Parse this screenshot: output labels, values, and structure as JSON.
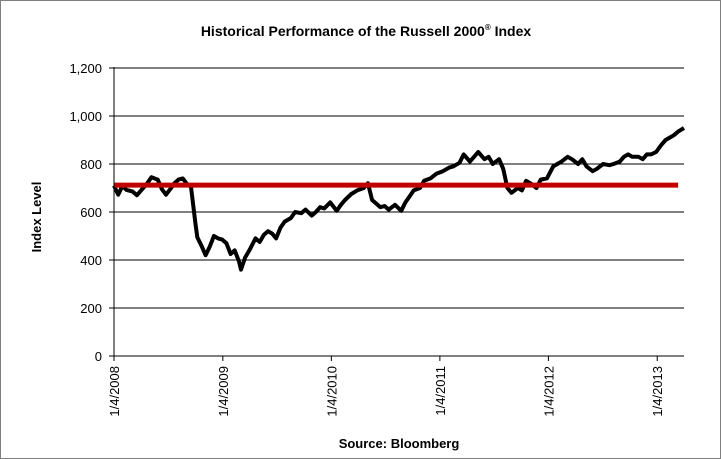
{
  "chart_data": {
    "type": "line",
    "title": "Historical Performance of the Russell 2000",
    "title_mark": "®",
    "title_suffix": " Index",
    "xlabel": "Source: Bloomberg",
    "ylabel": "Index Level",
    "ylim": [
      0,
      1200
    ],
    "yticks": [
      0,
      200,
      400,
      600,
      800,
      1000,
      1200
    ],
    "ytick_labels": [
      "0",
      "200",
      "400",
      "600",
      "800",
      "1,000",
      "1,200"
    ],
    "xlim": [
      "2008-01-04",
      "2013-04-04"
    ],
    "xticks": [
      "2008-01-04",
      "2009-01-04",
      "2010-01-04",
      "2011-01-04",
      "2012-01-04",
      "2013-01-04"
    ],
    "xtick_labels": [
      "1/4/2008",
      "1/4/2009",
      "1/4/2010",
      "1/4/2011",
      "1/4/2012",
      "1/4/2013"
    ],
    "grid": true,
    "legend": "none",
    "series": [
      {
        "color": "#000000",
        "x": [
          "2008-01-04",
          "2008-01-18",
          "2008-02-01",
          "2008-02-15",
          "2008-03-07",
          "2008-03-21",
          "2008-04-04",
          "2008-04-25",
          "2008-05-09",
          "2008-05-30",
          "2008-06-13",
          "2008-06-27",
          "2008-07-11",
          "2008-07-25",
          "2008-08-08",
          "2008-08-22",
          "2008-09-05",
          "2008-09-19",
          "2008-10-03",
          "2008-10-10",
          "2008-10-24",
          "2008-11-07",
          "2008-11-21",
          "2008-12-05",
          "2008-12-19",
          "2009-01-02",
          "2009-01-16",
          "2009-01-30",
          "2009-02-13",
          "2009-02-27",
          "2009-03-06",
          "2009-03-20",
          "2009-04-03",
          "2009-04-24",
          "2009-05-08",
          "2009-05-22",
          "2009-06-05",
          "2009-06-19",
          "2009-07-02",
          "2009-07-17",
          "2009-07-31",
          "2009-08-21",
          "2009-09-04",
          "2009-09-25",
          "2009-10-09",
          "2009-10-30",
          "2009-11-13",
          "2009-11-27",
          "2009-12-11",
          "2009-12-31",
          "2010-01-22",
          "2010-02-05",
          "2010-02-19",
          "2010-03-12",
          "2010-04-01",
          "2010-04-23",
          "2010-05-07",
          "2010-05-21",
          "2010-06-04",
          "2010-06-18",
          "2010-07-02",
          "2010-07-16",
          "2010-08-06",
          "2010-08-27",
          "2010-09-10",
          "2010-09-24",
          "2010-10-08",
          "2010-10-29",
          "2010-11-12",
          "2010-12-03",
          "2010-12-24",
          "2011-01-14",
          "2011-02-04",
          "2011-02-18",
          "2011-03-11",
          "2011-03-25",
          "2011-04-15",
          "2011-04-29",
          "2011-05-13",
          "2011-06-03",
          "2011-06-17",
          "2011-07-01",
          "2011-07-22",
          "2011-08-05",
          "2011-08-19",
          "2011-09-02",
          "2011-09-23",
          "2011-10-07",
          "2011-10-21",
          "2011-11-04",
          "2011-11-25",
          "2011-12-09",
          "2011-12-30",
          "2012-01-20",
          "2012-02-03",
          "2012-02-17",
          "2012-03-09",
          "2012-03-23",
          "2012-04-13",
          "2012-04-27",
          "2012-05-11",
          "2012-06-01",
          "2012-06-15",
          "2012-07-06",
          "2012-07-27",
          "2012-08-10",
          "2012-08-31",
          "2012-09-14",
          "2012-09-28",
          "2012-10-12",
          "2012-11-02",
          "2012-11-16",
          "2012-11-30",
          "2012-12-14",
          "2012-12-31",
          "2013-01-18",
          "2013-02-01",
          "2013-02-15",
          "2013-03-01",
          "2013-03-15",
          "2013-04-04"
        ],
        "values": [
          710,
          672,
          708,
          692,
          685,
          670,
          690,
          720,
          745,
          735,
          695,
          672,
          695,
          720,
          735,
          740,
          718,
          705,
          560,
          495,
          460,
          420,
          455,
          500,
          490,
          485,
          470,
          425,
          440,
          395,
          360,
          410,
          440,
          490,
          475,
          505,
          520,
          510,
          490,
          535,
          560,
          575,
          600,
          595,
          610,
          585,
          600,
          620,
          615,
          640,
          605,
          630,
          650,
          675,
          690,
          700,
          720,
          650,
          635,
          620,
          625,
          610,
          630,
          605,
          640,
          665,
          690,
          700,
          730,
          740,
          760,
          770,
          785,
          790,
          805,
          840,
          810,
          830,
          850,
          820,
          830,
          800,
          820,
          780,
          700,
          680,
          700,
          690,
          730,
          720,
          700,
          735,
          740,
          790,
          800,
          810,
          830,
          820,
          800,
          820,
          790,
          770,
          780,
          800,
          795,
          800,
          810,
          830,
          840,
          830,
          830,
          820,
          840,
          840,
          850,
          880,
          900,
          910,
          920,
          935,
          950
        ]
      },
      {
        "color": "#c00000",
        "x": [
          "2008-01-04",
          "2013-03-15"
        ],
        "values": [
          712,
          712
        ]
      }
    ]
  }
}
